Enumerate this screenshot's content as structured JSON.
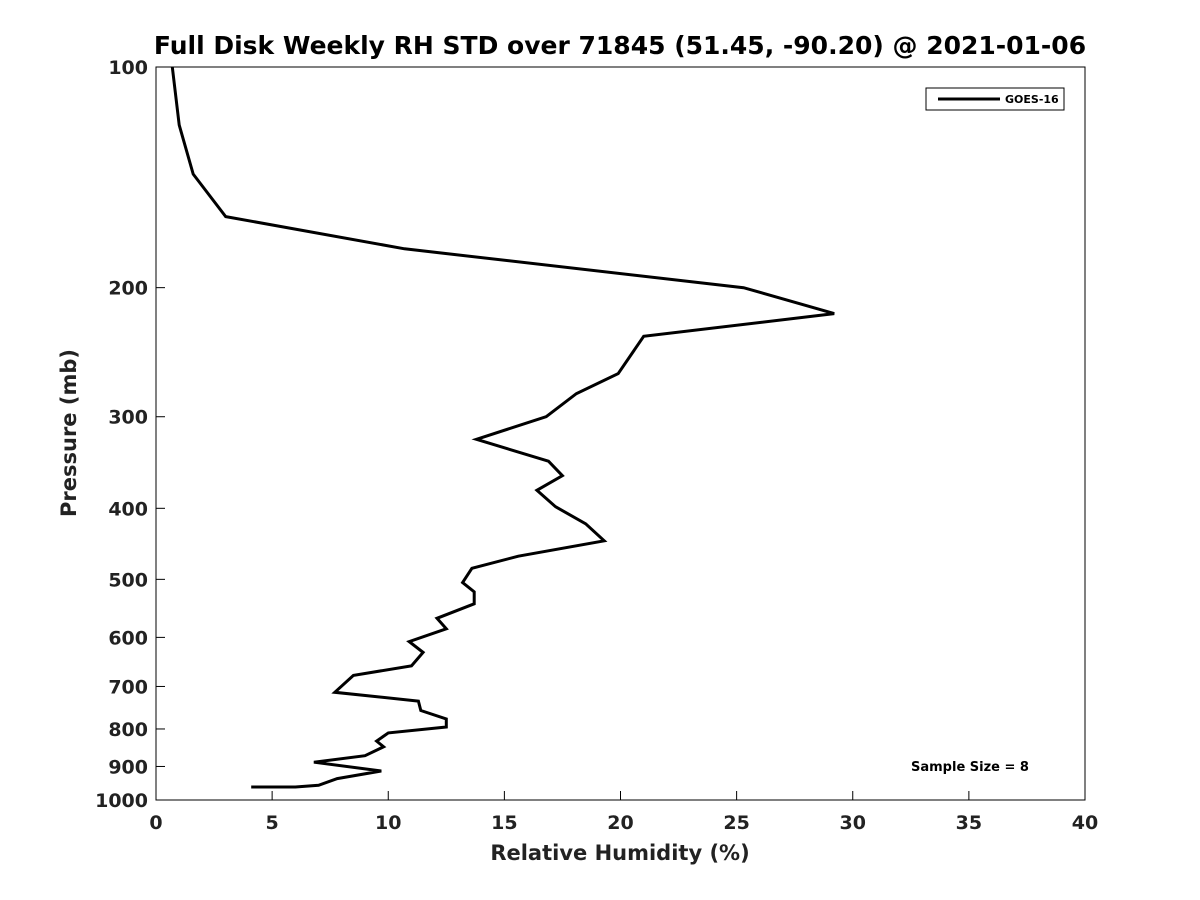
{
  "chart_data": {
    "type": "line",
    "title": "Full Disk Weekly RH STD over 71845 (51.45, -90.20) @ 2021-01-06",
    "xlabel": "Relative Humidity (%)",
    "ylabel": "Pressure (mb)",
    "xlim": [
      0,
      40
    ],
    "ylim": [
      100,
      1000
    ],
    "yscale": "log",
    "y_reversed": true,
    "grid": false,
    "legend_placement": "top-right",
    "x_ticks": [
      "0",
      "5",
      "10",
      "15",
      "20",
      "25",
      "30",
      "35",
      "40"
    ],
    "y_ticks": [
      "100",
      "200",
      "300",
      "400",
      "500",
      "600",
      "700",
      "800",
      "900",
      "1000"
    ],
    "series": [
      {
        "name": "GOES-16",
        "color": "#000000",
        "x": [
          0.7,
          1.0,
          1.6,
          3.0,
          10.7,
          25.3,
          29.2,
          21.0,
          19.9,
          18.1,
          16.8,
          13.8,
          16.9,
          17.5,
          16.4,
          17.2,
          18.5,
          19.3,
          15.6,
          13.6,
          13.2,
          13.7,
          13.7,
          12.1,
          12.5,
          10.9,
          11.5,
          11.0,
          8.5,
          7.7,
          11.3,
          11.4,
          12.5,
          12.5,
          10.0,
          9.5,
          9.8,
          9.0,
          6.8,
          9.7,
          7.8,
          7.0,
          6.0,
          4.1
        ],
        "y": [
          100,
          120,
          140,
          160,
          177,
          200,
          217,
          233,
          262,
          279,
          300,
          322,
          345,
          361,
          378,
          398,
          420,
          443,
          465,
          483,
          505,
          520,
          540,
          565,
          584,
          608,
          629,
          656,
          676,
          713,
          733,
          755,
          775,
          795,
          810,
          831,
          846,
          870,
          888,
          913,
          935,
          955,
          980,
          1010
        ]
      }
    ],
    "annotation": "Sample Size = 8"
  }
}
